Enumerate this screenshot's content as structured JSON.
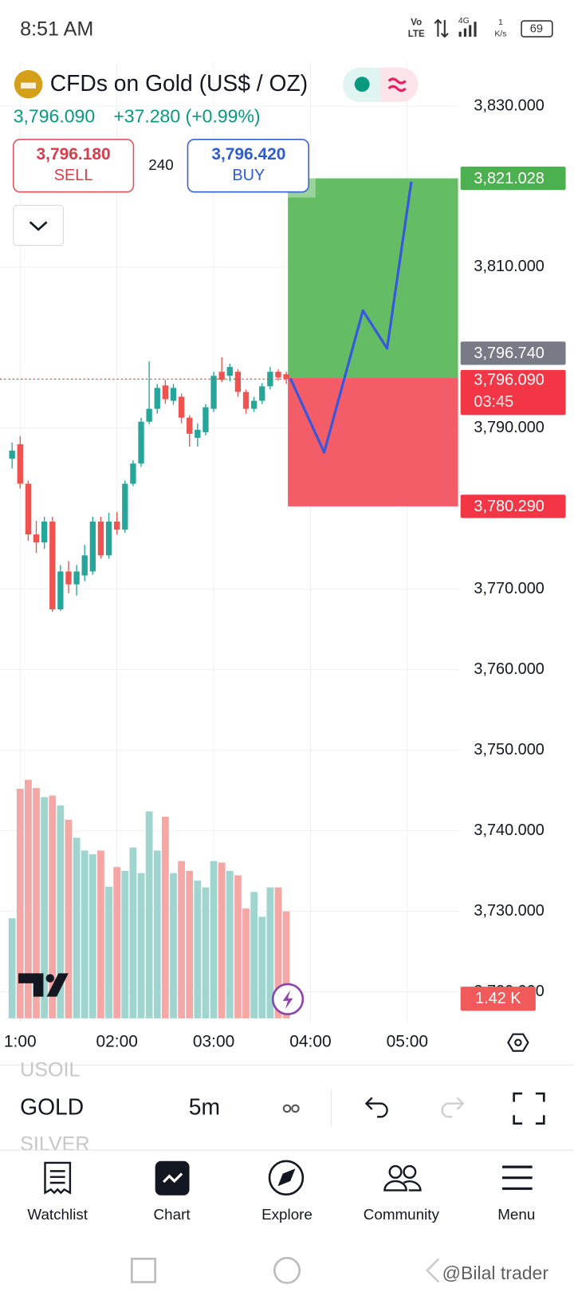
{
  "status_bar": {
    "time": "8:51 AM",
    "volte_top": "Vo",
    "volte_bottom": "LTE",
    "network": "4G",
    "speed": "1",
    "speed_unit": "K/s",
    "battery": "69"
  },
  "header": {
    "title": "CFDs on Gold (US$ / OZ)",
    "price": "3,796.090",
    "change": "+37.280 (+0.99%)",
    "sell": {
      "price": "3,796.180",
      "label": "SELL"
    },
    "spread": "240",
    "buy": {
      "price": "3,796.420",
      "label": "BUY"
    }
  },
  "chart": {
    "type": "candlestick",
    "up_color": "#26a69a",
    "down_color": "#ef5350",
    "open": [
      3786.2,
      3788.0,
      3783.1,
      3776.8,
      3775.8,
      3778.4,
      3767.5,
      3772.2,
      3770.6,
      3771.7,
      3772.2,
      3778.4,
      3774.2,
      3778.4,
      3777.4,
      3783.1,
      3785.6,
      3790.8,
      3792.4,
      3795.3,
      3793.4,
      3793.9,
      3791.3,
      3788.8,
      3789.5,
      3792.4,
      3797.0,
      3796.5,
      3797.0,
      3794.5,
      3792.4,
      3793.4,
      3795.2,
      3797.0,
      3796.7
    ],
    "high": [
      3788.2,
      3789.0,
      3783.5,
      3778.5,
      3779.0,
      3779.0,
      3773.0,
      3773.5,
      3773.0,
      3775.5,
      3779.0,
      3779.0,
      3779.5,
      3779.6,
      3783.5,
      3786.0,
      3791.3,
      3798.3,
      3795.5,
      3796.0,
      3795.5,
      3794.3,
      3791.6,
      3790.6,
      3793.0,
      3797.0,
      3798.8,
      3798.0,
      3797.3,
      3794.8,
      3793.9,
      3795.6,
      3797.6,
      3797.3,
      3797.0
    ],
    "low": [
      3785.0,
      3782.5,
      3776.0,
      3774.5,
      3775.0,
      3767.2,
      3767.3,
      3769.5,
      3769.2,
      3771.0,
      3771.8,
      3773.8,
      3773.8,
      3776.8,
      3777.0,
      3782.8,
      3785.2,
      3790.5,
      3791.8,
      3793.0,
      3792.9,
      3790.6,
      3787.7,
      3787.7,
      3789.1,
      3792.0,
      3795.7,
      3795.8,
      3793.9,
      3791.8,
      3792.0,
      3793.0,
      3794.8,
      3795.9,
      3795.5
    ],
    "close": [
      3787.2,
      3783.1,
      3776.8,
      3775.8,
      3778.4,
      3767.5,
      3772.2,
      3770.6,
      3772.2,
      3774.2,
      3778.4,
      3774.2,
      3778.4,
      3777.4,
      3783.1,
      3785.6,
      3790.8,
      3792.4,
      3795.0,
      3793.6,
      3795.0,
      3791.3,
      3789.3,
      3789.8,
      3792.6,
      3796.5,
      3796.0,
      3797.6,
      3794.5,
      3792.4,
      3793.4,
      3795.2,
      3797.0,
      3796.3,
      3796.09
    ],
    "volume": {
      "values": [
        1.33,
        3.05,
        3.17,
        3.06,
        2.94,
        2.96,
        2.83,
        2.64,
        2.4,
        2.23,
        2.18,
        2.23,
        1.75,
        2.01,
        1.96,
        2.27,
        1.93,
        2.75,
        2.23,
        2.68,
        1.93,
        2.09,
        1.96,
        1.83,
        1.74,
        2.09,
        2.07,
        1.96,
        1.9,
        1.46,
        1.68,
        1.35,
        1.74,
        1.74,
        1.42
      ],
      "ylim": [
        0,
        12.7
      ],
      "up_color": "#9fd4cf",
      "down_color": "#f4a7a5"
    },
    "volume_marker": {
      "value": 1.42,
      "label": "1.42 K",
      "color": "#f05a5a"
    },
    "xlim": [
      -1.5,
      55.4
    ],
    "xticks": [
      {
        "value": 1,
        "label": "1:00"
      },
      {
        "value": 13,
        "label": "02:00"
      },
      {
        "value": 25,
        "label": "03:00"
      },
      {
        "value": 37,
        "label": "04:00"
      },
      {
        "value": 49,
        "label": "05:00"
      }
    ],
    "ylim": [
      3716.7,
      3835.4
    ],
    "yticks": [
      {
        "value": 3830,
        "label": "3,830.000"
      },
      {
        "value": 3810,
        "label": "3,810.000"
      },
      {
        "value": 3790,
        "label": "3,790.000"
      },
      {
        "value": 3770,
        "label": "3,770.000"
      },
      {
        "value": 3760,
        "label": "3,760.000"
      },
      {
        "value": 3750,
        "label": "3,750.000"
      },
      {
        "value": 3740,
        "label": "3,740.000"
      },
      {
        "value": 3730,
        "label": "3,730.000"
      },
      {
        "value": 3720,
        "label": "3,720.000"
      }
    ],
    "grid": true,
    "current_price": {
      "value": 3796.09,
      "label": "3,796.090",
      "countdown": "03:45",
      "color": "#f23645"
    },
    "price_tags": [
      {
        "value": 3821.028,
        "label": "3,821.028",
        "color": "#4caf50"
      },
      {
        "value": 3796.74,
        "label": "3,796.740",
        "color": "#787b86"
      },
      {
        "value": 3780.29,
        "label": "3,780.290",
        "color": "#f23645"
      }
    ],
    "position": {
      "entry": 3796.3,
      "x_range": [
        34.2,
        55.3
      ],
      "profit_color": "#5cb85c",
      "loss_color": "#f2545f"
    },
    "projection": {
      "x": [
        34.5,
        38.7,
        43.5,
        46.5,
        49.5
      ],
      "values": [
        3796.2,
        3787.0,
        3804.6,
        3799.9,
        3820.6
      ],
      "color": "#3557e0"
    }
  },
  "toolbar": {
    "symbols": [
      "USOIL",
      "GOLD",
      "SILVER"
    ],
    "interval": "5m"
  },
  "nav": [
    "Watchlist",
    "Chart",
    "Explore",
    "Community",
    "Menu"
  ],
  "watermark": "@Bilal trader"
}
